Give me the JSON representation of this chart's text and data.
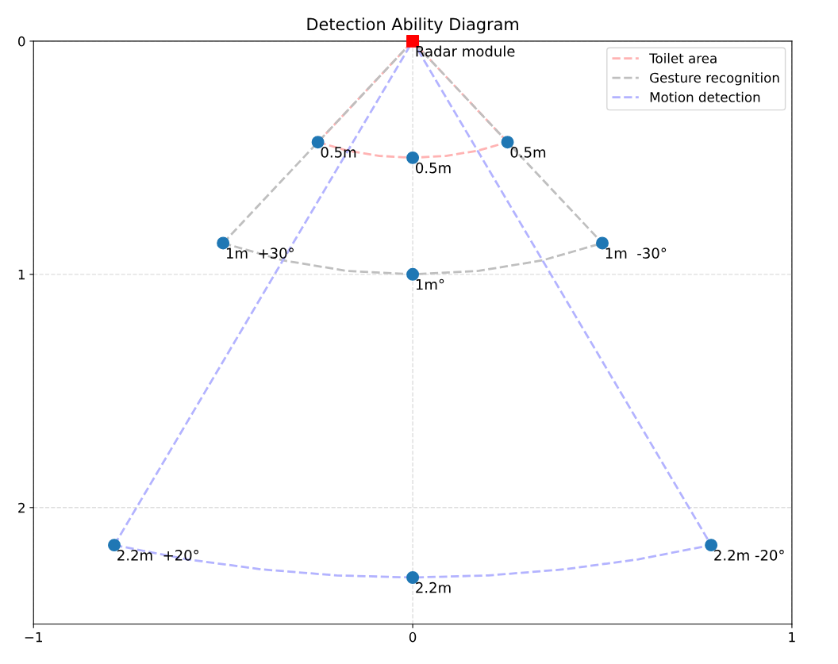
{
  "chart_data": {
    "type": "line",
    "title": "Detection Ability Diagram",
    "xlim": [
      -1,
      1
    ],
    "ylim": [
      2.5,
      0
    ],
    "xticks": [
      {
        "value": -1,
        "label": "−1"
      },
      0,
      1
    ],
    "yticks": [
      0,
      1,
      2
    ],
    "grid": true,
    "legend": "top right",
    "line_style": "dashed",
    "series": [
      {
        "name": "Toilet area",
        "color": "#ffb3b3",
        "x": [
          -0.25,
          -0.171,
          -0.087,
          0,
          0.087,
          0.171,
          0.25
        ],
        "values": [
          0.433,
          0.47,
          0.492,
          0.5,
          0.492,
          0.47,
          0.433
        ]
      },
      {
        "color": "#ffb3b3",
        "x": [
          -0.25,
          0,
          0.25
        ],
        "values": [
          0.433,
          0,
          0.433
        ]
      },
      {
        "name": "Gesture recognition",
        "color": "#bfbfbf",
        "x": [
          -0.5,
          -0.342,
          -0.174,
          0,
          0.174,
          0.342,
          0.5
        ],
        "values": [
          0.866,
          0.94,
          0.985,
          1,
          0.985,
          0.94,
          0.866
        ]
      },
      {
        "color": "#bfbfbf",
        "x": [
          -0.5,
          0,
          0.5
        ],
        "values": [
          0.866,
          0,
          0.866
        ]
      },
      {
        "name": "Motion detection",
        "color": "#b3b3ff",
        "x": [
          -0.787,
          -0.595,
          -0.399,
          -0.2,
          0,
          0.2,
          0.399,
          0.595,
          0.787
        ],
        "values": [
          2.161,
          2.222,
          2.265,
          2.291,
          2.3,
          2.291,
          2.265,
          2.222,
          2.161
        ]
      },
      {
        "color": "#b3b3ff",
        "x": [
          -0.787,
          0,
          0.787
        ],
        "values": [
          2.161,
          0,
          2.161
        ]
      },
      {
        "type": "scatter",
        "color": "#1f77b4",
        "marker": "circle",
        "x": [
          -0.25,
          0,
          0.25,
          -0.5,
          0,
          0.5,
          -0.787,
          0,
          0.787
        ],
        "values": [
          0.433,
          0.5,
          0.433,
          0.866,
          1,
          0.866,
          2.161,
          2.3,
          2.161
        ]
      },
      {
        "type": "scatter",
        "color": "#ff0000",
        "marker": "square",
        "x": [
          0
        ],
        "values": [
          0
        ]
      }
    ],
    "annotations": [
      {
        "text": "Radar module",
        "x": 0,
        "y": 0
      },
      {
        "text": "0.5m",
        "x": -0.25,
        "y": 0.433
      },
      {
        "text": "0.5m",
        "x": 0,
        "y": 0.5
      },
      {
        "text": "0.5m",
        "x": 0.25,
        "y": 0.433
      },
      {
        "text": "1m  +30°",
        "x": -0.5,
        "y": 0.866
      },
      {
        "text": "1m°",
        "x": 0,
        "y": 1
      },
      {
        "text": "1m  -30°",
        "x": 0.5,
        "y": 0.866
      },
      {
        "text": "2.2m  +20°",
        "x": -0.787,
        "y": 2.161
      },
      {
        "text": "2.2m",
        "x": 0,
        "y": 2.3
      },
      {
        "text": "2.2m -20°",
        "x": 0.787,
        "y": 2.161
      }
    ]
  }
}
